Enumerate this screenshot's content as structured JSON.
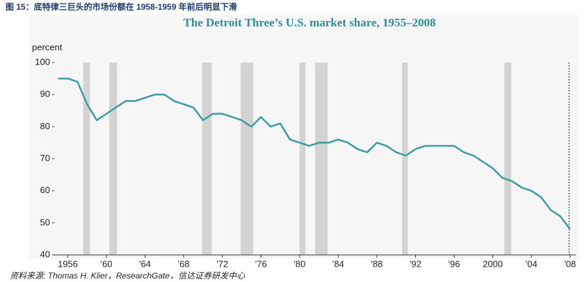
{
  "caption": "图 15：底特律三巨头的市场份额在 1958-1959 年前后明显下滑",
  "source": "资料来源: Thomas H. Klier，ResearchGate，信达证券研发中心",
  "chart_data": {
    "type": "line",
    "title": "The Detroit Three’s U.S. market share, 1955–2008",
    "ylabel": "percent",
    "color": "#3a9ca3",
    "x": [
      1955,
      1956,
      1957,
      1958,
      1959,
      1960,
      1961,
      1962,
      1963,
      1964,
      1965,
      1966,
      1967,
      1968,
      1969,
      1970,
      1971,
      1972,
      1973,
      1974,
      1975,
      1976,
      1977,
      1978,
      1979,
      1980,
      1981,
      1982,
      1983,
      1984,
      1985,
      1986,
      1987,
      1988,
      1989,
      1990,
      1991,
      1992,
      1993,
      1994,
      1995,
      1996,
      1997,
      1998,
      1999,
      2000,
      2001,
      2002,
      2003,
      2004,
      2005,
      2006,
      2007,
      2008
    ],
    "values": [
      95,
      95,
      94,
      87,
      82,
      84,
      86,
      88,
      88,
      89,
      90,
      90,
      88,
      87,
      86,
      82,
      84,
      84,
      83,
      82,
      80,
      83,
      80,
      81,
      76,
      75,
      74,
      75,
      75,
      76,
      75,
      73,
      72,
      75,
      74,
      72,
      71,
      73,
      74,
      74,
      74,
      74,
      72,
      71,
      69,
      67,
      64,
      63,
      61,
      60,
      58,
      54,
      52,
      48
    ],
    "recessions": [
      [
        1957.6,
        1958.3
      ],
      [
        1960.3,
        1961.1
      ],
      [
        1969.9,
        1970.9
      ],
      [
        1973.9,
        1975.2
      ],
      [
        1980.0,
        1980.6
      ],
      [
        1981.6,
        1982.9
      ],
      [
        1990.6,
        1991.2
      ],
      [
        2001.2,
        2001.9
      ]
    ],
    "vline": 2007.9,
    "xlim": [
      1954.6,
      2008.6
    ],
    "ylim": [
      40,
      100
    ],
    "yticks": [
      40,
      50,
      60,
      70,
      80,
      90,
      100
    ],
    "xticks": [
      1956,
      {
        "value": 1960,
        "label": "'60"
      },
      {
        "value": 1964,
        "label": "'64"
      },
      {
        "value": 1968,
        "label": "'68"
      },
      {
        "value": 1972,
        "label": "'72"
      },
      {
        "value": 1976,
        "label": "'76"
      },
      {
        "value": 1980,
        "label": "'80"
      },
      {
        "value": 1984,
        "label": "'84"
      },
      {
        "value": 1988,
        "label": "'88"
      },
      {
        "value": 1992,
        "label": "'92"
      },
      {
        "value": 1996,
        "label": "'96"
      },
      2000,
      {
        "value": 2004,
        "label": "'04"
      },
      {
        "value": 2008,
        "label": "'08"
      }
    ],
    "grid": false
  }
}
